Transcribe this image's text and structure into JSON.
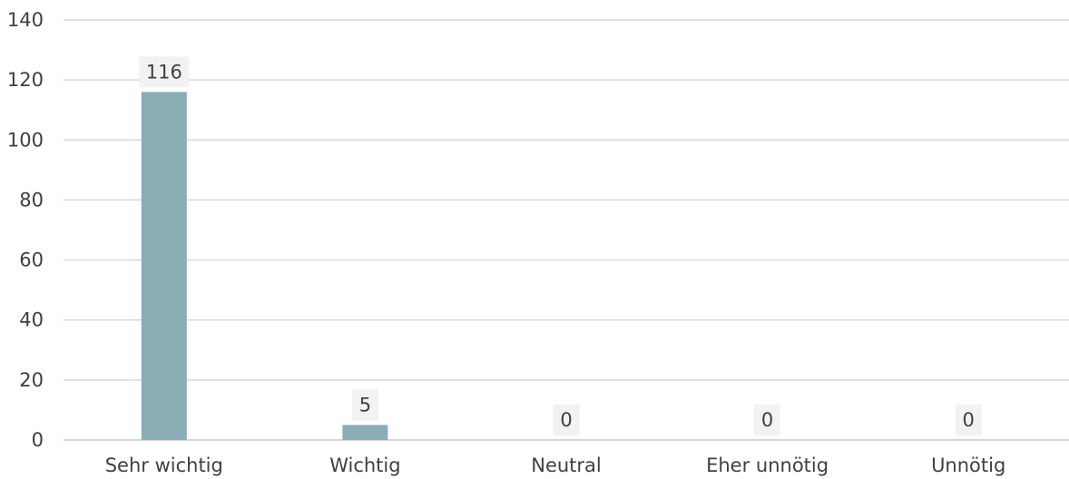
{
  "chart_data": {
    "type": "bar",
    "categories": [
      "Sehr wichtig",
      "Wichtig",
      "Neutral",
      "Eher unnötig",
      "Unnötig"
    ],
    "values": [
      116,
      5,
      0,
      0,
      0
    ],
    "data_labels": [
      "116",
      "5",
      "0",
      "0",
      "0"
    ],
    "ylim": [
      0,
      140
    ],
    "yticks": [
      0,
      20,
      40,
      60,
      80,
      100,
      120,
      140
    ],
    "ytick_labels": [
      "0",
      "20",
      "40",
      "60",
      "80",
      "100",
      "120",
      "140"
    ],
    "grid": true,
    "legend": "none",
    "colors": {
      "bar": "#89aeb5",
      "grid": "#d9d9d9",
      "text": "#404040",
      "label_background": "#f2f2f2"
    }
  }
}
